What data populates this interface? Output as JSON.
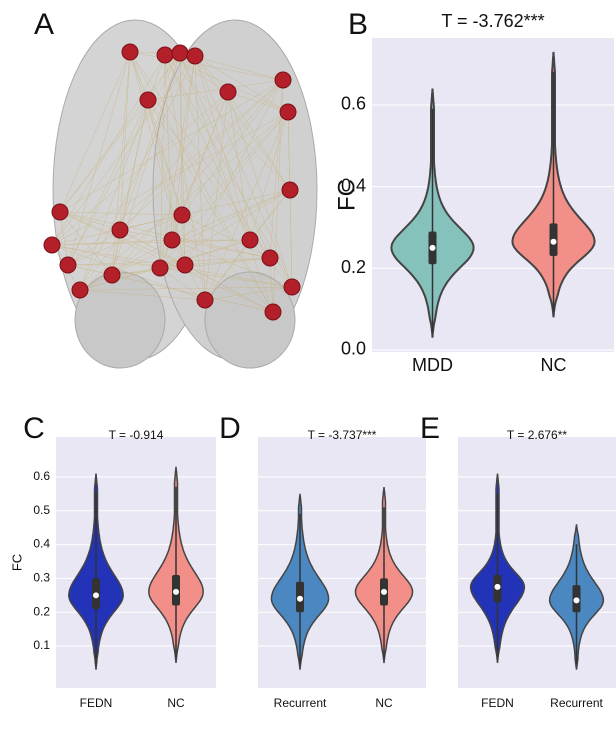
{
  "brain_panel": {
    "label": "A"
  },
  "chart_data": [
    {
      "type": "violin",
      "panel": "B",
      "title": "T = -3.762***",
      "y_label": "FC",
      "categories": [
        "MDD",
        "NC"
      ],
      "colors": [
        "#86c2bc",
        "#f28f88"
      ],
      "min": [
        0.03,
        0.08
      ],
      "q1": [
        0.21,
        0.23
      ],
      "median": [
        0.25,
        0.265
      ],
      "q3": [
        0.29,
        0.31
      ],
      "max": [
        0.64,
        0.73
      ],
      "ylim": [
        -0.005,
        0.764
      ],
      "yticks": [
        {
          "value": 0,
          "label": "0.0"
        },
        0.2,
        0.4,
        0.6
      ],
      "grid": true
    },
    {
      "type": "violin",
      "panel": "C",
      "title": "T = -0.914",
      "y_label": "FC",
      "categories": [
        "FEDN",
        "NC"
      ],
      "colors": [
        "#2233b8",
        "#f28f88"
      ],
      "min": [
        0.03,
        0.05
      ],
      "q1": [
        0.21,
        0.22
      ],
      "median": [
        0.25,
        0.26
      ],
      "q3": [
        0.3,
        0.31
      ],
      "max": [
        0.61,
        0.63
      ],
      "ylim": [
        -0.024,
        0.718
      ],
      "yticks": [
        0.1,
        0.2,
        0.3,
        0.4,
        0.5,
        0.6
      ],
      "grid": true
    },
    {
      "type": "violin",
      "panel": "D",
      "title": "T = -3.737***",
      "categories": [
        "Recurrent",
        "NC"
      ],
      "colors": [
        "#4b87c1",
        "#f28f88"
      ],
      "min": [
        0.03,
        0.05
      ],
      "q1": [
        0.2,
        0.22
      ],
      "median": [
        0.24,
        0.26
      ],
      "q3": [
        0.29,
        0.3
      ],
      "max": [
        0.55,
        0.57
      ],
      "ylim": [
        -0.024,
        0.718
      ],
      "yticks": [
        0.1,
        0.2,
        0.3,
        0.4,
        0.5,
        0.6
      ],
      "grid": true,
      "tick_labels": false
    },
    {
      "type": "violin",
      "panel": "E",
      "title": "T = 2.676**",
      "categories": [
        "FEDN",
        "Recurrent"
      ],
      "colors": [
        "#2233b8",
        "#4b87c1"
      ],
      "min": [
        0.05,
        0.03
      ],
      "q1": [
        0.23,
        0.2
      ],
      "median": [
        0.275,
        0.235
      ],
      "q3": [
        0.31,
        0.28
      ],
      "max": [
        0.61,
        0.46
      ],
      "ylim": [
        -0.024,
        0.718
      ],
      "yticks": [
        0.1,
        0.2,
        0.3,
        0.4,
        0.5,
        0.6
      ],
      "grid": true,
      "tick_labels": false
    }
  ]
}
